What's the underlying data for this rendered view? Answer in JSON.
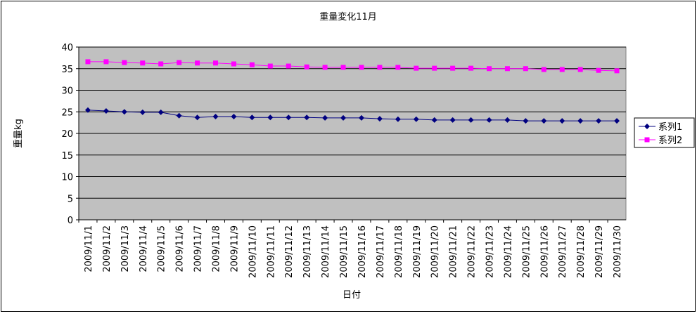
{
  "chart_data": {
    "type": "line",
    "title": "重量変化11月",
    "x_label": "日付",
    "y_label": "重量kg",
    "categories": [
      "2009/11/1",
      "2009/11/2",
      "2009/11/3",
      "2009/11/4",
      "2009/11/5",
      "2009/11/6",
      "2009/11/7",
      "2009/11/8",
      "2009/11/9",
      "2009/11/10",
      "2009/11/11",
      "2009/11/12",
      "2009/11/13",
      "2009/11/14",
      "2009/11/15",
      "2009/11/16",
      "2009/11/17",
      "2009/11/18",
      "2009/11/19",
      "2009/11/20",
      "2009/11/21",
      "2009/11/22",
      "2009/11/23",
      "2009/11/24",
      "2009/11/25",
      "2009/11/26",
      "2009/11/27",
      "2009/11/28",
      "2009/11/29",
      "2009/11/30"
    ],
    "series": [
      {
        "name": "系列1",
        "color": "#000080",
        "marker": "diamond",
        "values": [
          25.4,
          25.2,
          25.0,
          24.9,
          24.9,
          24.1,
          23.7,
          23.9,
          23.9,
          23.7,
          23.7,
          23.7,
          23.7,
          23.6,
          23.6,
          23.6,
          23.4,
          23.3,
          23.3,
          23.1,
          23.1,
          23.1,
          23.1,
          23.1,
          22.9,
          22.9,
          22.9,
          22.9,
          22.9,
          22.9
        ]
      },
      {
        "name": "系列2",
        "color": "#ff00ff",
        "marker": "square",
        "values": [
          36.6,
          36.6,
          36.4,
          36.3,
          36.1,
          36.4,
          36.3,
          36.3,
          36.1,
          35.9,
          35.6,
          35.6,
          35.4,
          35.3,
          35.3,
          35.3,
          35.3,
          35.3,
          35.1,
          35.1,
          35.1,
          35.1,
          35.0,
          35.0,
          35.0,
          34.8,
          34.8,
          34.8,
          34.6,
          34.5
        ]
      }
    ],
    "ylim": [
      0,
      40
    ],
    "yticks": [
      0,
      5,
      10,
      15,
      20,
      25,
      30,
      35,
      40
    ],
    "grid": true,
    "legend": "right",
    "plot_background": "#c0c0c0"
  }
}
